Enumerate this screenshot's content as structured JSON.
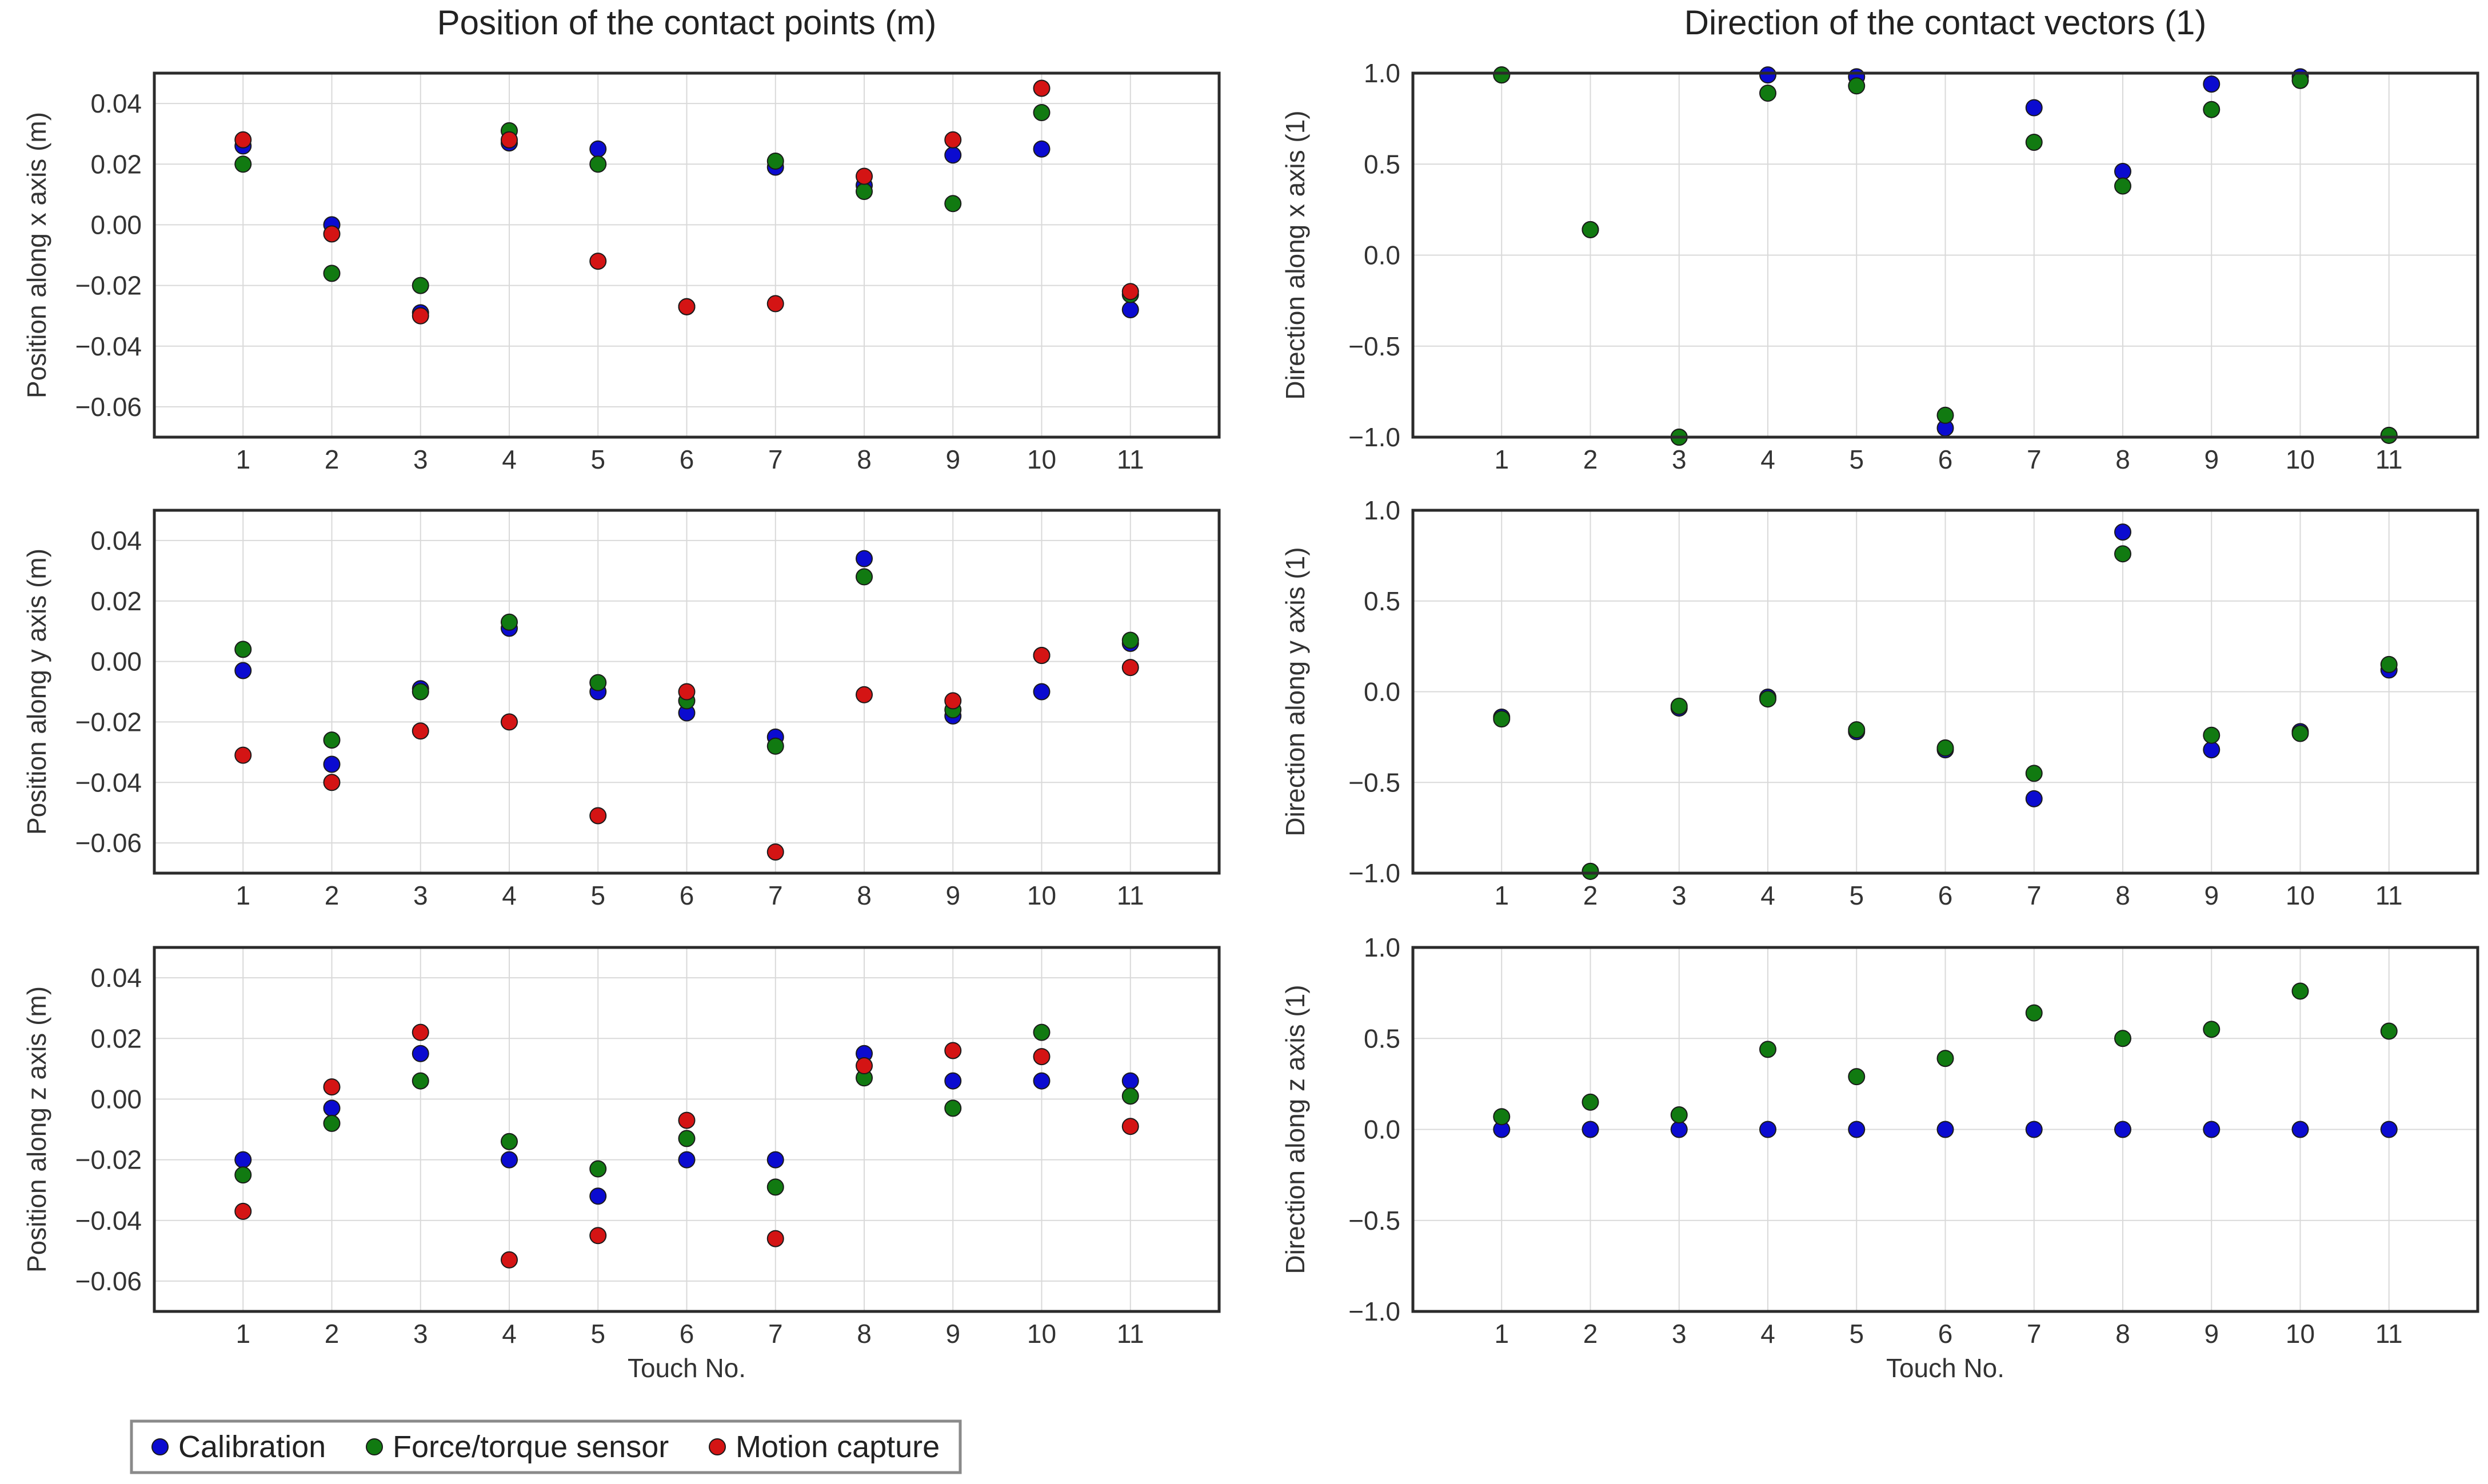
{
  "legend": {
    "items": [
      {
        "name": "Calibration",
        "color": "#0b0bd0"
      },
      {
        "name": "Force/torque sensor",
        "color": "#117a11"
      },
      {
        "name": "Motion capture",
        "color": "#d41414"
      }
    ]
  },
  "chart_data": [
    {
      "type": "scatter",
      "title": "Position of the contact points (m)",
      "xlabel": "",
      "ylabel": "Position along x axis (m)",
      "x": [
        1,
        2,
        3,
        4,
        5,
        6,
        7,
        8,
        9,
        10,
        11
      ],
      "xlim": [
        0,
        12
      ],
      "ylim": [
        -0.07,
        0.05
      ],
      "yticks": [
        0.04,
        0.02,
        0.0,
        -0.02,
        -0.04,
        -0.06
      ],
      "ytick_labels": [
        "0.04",
        "0.02",
        "0.00",
        "−0.02",
        "−0.04",
        "−0.06"
      ],
      "grid": true,
      "series": [
        {
          "name": "Calibration",
          "values": [
            0.026,
            0.0,
            -0.029,
            0.027,
            0.025,
            -0.027,
            0.019,
            0.013,
            0.023,
            0.025,
            -0.028
          ]
        },
        {
          "name": "Force/torque sensor",
          "values": [
            0.02,
            -0.016,
            -0.02,
            0.031,
            0.02,
            -0.027,
            0.021,
            0.011,
            0.007,
            0.037,
            -0.023
          ]
        },
        {
          "name": "Motion capture",
          "values": [
            0.028,
            -0.003,
            -0.03,
            0.028,
            -0.012,
            -0.027,
            -0.026,
            0.016,
            0.028,
            0.045,
            -0.022
          ]
        }
      ]
    },
    {
      "type": "scatter",
      "title": "Direction of the contact vectors (1)",
      "xlabel": "",
      "ylabel": "Direction along x axis (1)",
      "x": [
        1,
        2,
        3,
        4,
        5,
        6,
        7,
        8,
        9,
        10,
        11
      ],
      "xlim": [
        0,
        12
      ],
      "ylim": [
        -1.0,
        1.0
      ],
      "yticks": [
        1.0,
        0.5,
        0.0,
        -0.5,
        -1.0
      ],
      "ytick_labels": [
        "1.0",
        "0.5",
        "0.0",
        "−0.5",
        "−1.0"
      ],
      "grid": true,
      "series": [
        {
          "name": "Calibration",
          "values": [
            0.99,
            0.14,
            -1.0,
            0.99,
            0.98,
            -0.95,
            0.81,
            0.46,
            0.94,
            0.98,
            -0.99
          ]
        },
        {
          "name": "Force/torque sensor",
          "values": [
            0.99,
            0.14,
            -1.0,
            0.89,
            0.93,
            -0.88,
            0.62,
            0.38,
            0.8,
            0.96,
            -0.99
          ]
        }
      ]
    },
    {
      "type": "scatter",
      "title": "",
      "xlabel": "",
      "ylabel": "Position along y axis (m)",
      "x": [
        1,
        2,
        3,
        4,
        5,
        6,
        7,
        8,
        9,
        10,
        11
      ],
      "xlim": [
        0,
        12
      ],
      "ylim": [
        -0.07,
        0.05
      ],
      "yticks": [
        0.04,
        0.02,
        0.0,
        -0.02,
        -0.04,
        -0.06
      ],
      "ytick_labels": [
        "0.04",
        "0.02",
        "0.00",
        "−0.02",
        "−0.04",
        "−0.06"
      ],
      "grid": true,
      "series": [
        {
          "name": "Calibration",
          "values": [
            -0.003,
            -0.034,
            -0.009,
            0.011,
            -0.01,
            -0.017,
            -0.025,
            0.034,
            -0.018,
            -0.01,
            0.006
          ]
        },
        {
          "name": "Force/torque sensor",
          "values": [
            0.004,
            -0.026,
            -0.01,
            0.013,
            -0.007,
            -0.013,
            -0.028,
            0.028,
            -0.016,
            0.002,
            0.007
          ]
        },
        {
          "name": "Motion capture",
          "values": [
            -0.031,
            -0.04,
            -0.023,
            -0.02,
            -0.051,
            -0.01,
            -0.063,
            -0.011,
            -0.013,
            0.002,
            -0.002
          ]
        }
      ]
    },
    {
      "type": "scatter",
      "title": "",
      "xlabel": "",
      "ylabel": "Direction along y axis (1)",
      "x": [
        1,
        2,
        3,
        4,
        5,
        6,
        7,
        8,
        9,
        10,
        11
      ],
      "xlim": [
        0,
        12
      ],
      "ylim": [
        -1.0,
        1.0
      ],
      "yticks": [
        1.0,
        0.5,
        0.0,
        -0.5,
        -1.0
      ],
      "ytick_labels": [
        "1.0",
        "0.5",
        "0.0",
        "−0.5",
        "−1.0"
      ],
      "grid": true,
      "series": [
        {
          "name": "Calibration",
          "values": [
            -0.14,
            -0.99,
            -0.09,
            -0.03,
            -0.22,
            -0.32,
            -0.59,
            0.88,
            -0.32,
            -0.22,
            0.12
          ]
        },
        {
          "name": "Force/torque sensor",
          "values": [
            -0.15,
            -0.99,
            -0.08,
            -0.04,
            -0.21,
            -0.31,
            -0.45,
            0.76,
            -0.24,
            -0.23,
            0.15
          ]
        }
      ]
    },
    {
      "type": "scatter",
      "title": "",
      "xlabel": "Touch No.",
      "ylabel": "Position along z axis (m)",
      "x": [
        1,
        2,
        3,
        4,
        5,
        6,
        7,
        8,
        9,
        10,
        11
      ],
      "xlim": [
        0,
        12
      ],
      "ylim": [
        -0.07,
        0.05
      ],
      "yticks": [
        0.04,
        0.02,
        0.0,
        -0.02,
        -0.04,
        -0.06
      ],
      "ytick_labels": [
        "0.04",
        "0.02",
        "0.00",
        "−0.02",
        "−0.04",
        "−0.06"
      ],
      "grid": true,
      "series": [
        {
          "name": "Calibration",
          "values": [
            -0.02,
            -0.003,
            0.015,
            -0.02,
            -0.032,
            -0.02,
            -0.02,
            0.015,
            0.006,
            0.006,
            0.006
          ]
        },
        {
          "name": "Force/torque sensor",
          "values": [
            -0.025,
            -0.008,
            0.006,
            -0.014,
            -0.023,
            -0.013,
            -0.029,
            0.007,
            -0.003,
            0.022,
            0.001
          ]
        },
        {
          "name": "Motion capture",
          "values": [
            -0.037,
            0.004,
            0.022,
            -0.053,
            -0.045,
            -0.007,
            -0.046,
            0.011,
            0.016,
            0.014,
            -0.009
          ]
        }
      ]
    },
    {
      "type": "scatter",
      "title": "",
      "xlabel": "Touch No.",
      "ylabel": "Direction along z axis (1)",
      "x": [
        1,
        2,
        3,
        4,
        5,
        6,
        7,
        8,
        9,
        10,
        11
      ],
      "xlim": [
        0,
        12
      ],
      "ylim": [
        -1.0,
        1.0
      ],
      "yticks": [
        1.0,
        0.5,
        0.0,
        -0.5,
        -1.0
      ],
      "ytick_labels": [
        "1.0",
        "0.5",
        "0.0",
        "−0.5",
        "−1.0"
      ],
      "grid": true,
      "series": [
        {
          "name": "Calibration",
          "values": [
            0.0,
            0.0,
            0.0,
            0.0,
            0.0,
            0.0,
            0.0,
            0.0,
            0.0,
            0.0,
            0.0
          ]
        },
        {
          "name": "Force/torque sensor",
          "values": [
            0.07,
            0.15,
            0.08,
            0.44,
            0.29,
            0.39,
            0.64,
            0.5,
            0.55,
            0.76,
            0.54
          ]
        }
      ]
    }
  ]
}
